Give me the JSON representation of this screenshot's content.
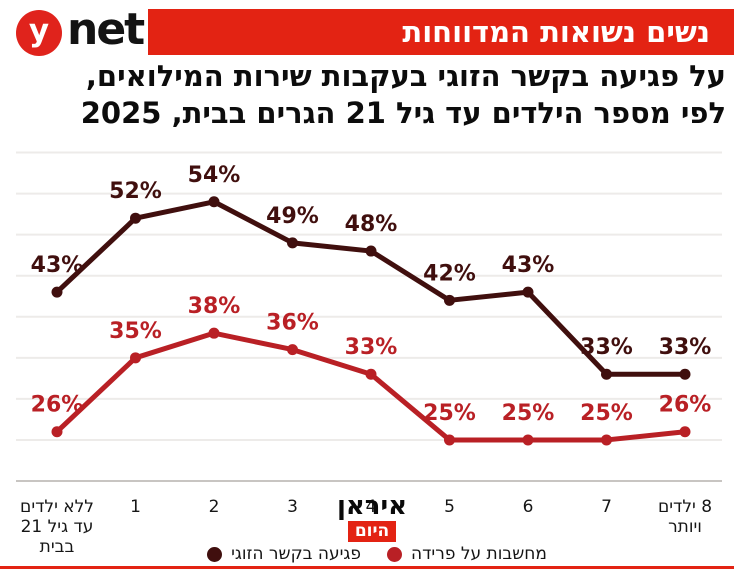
{
  "header": {
    "logo": {
      "circle_letter": "y",
      "wordmark": "net"
    },
    "banner_title": "נשים נשואות המדווחות"
  },
  "subtitle": {
    "line1": "על פגיעה בקשר הזוגי בעקבות שירות המילואים,",
    "line2": "לפי מספר הילדים עד גיל 21 הגרים בבית, 2025"
  },
  "chart_data": {
    "type": "line",
    "unit": "%",
    "categories": [
      "ללא ילדים עד גיל 21 בבית",
      "1",
      "2",
      "3",
      "4",
      "5",
      "6",
      "7",
      "8 ילדים ויותר"
    ],
    "category_lines": [
      [
        "ללא ילדים",
        "עד גיל 21",
        "בבית"
      ],
      [
        "1"
      ],
      [
        "2"
      ],
      [
        "3"
      ],
      [
        "4"
      ],
      [
        "5"
      ],
      [
        "6"
      ],
      [
        "7"
      ],
      [
        "8 ילדים",
        "ויותר"
      ]
    ],
    "series": [
      {
        "name": "פגיעה בקשר הזוגי",
        "color": "#400f0e",
        "values": [
          43,
          52,
          54,
          49,
          48,
          42,
          43,
          33,
          33
        ]
      },
      {
        "name": "מחשבות על פרידה",
        "color": "#b92025",
        "values": [
          26,
          35,
          38,
          36,
          33,
          25,
          25,
          25,
          26
        ]
      }
    ],
    "ylim": [
      20,
      60
    ],
    "grid_step": 5,
    "grid": "on",
    "legend_position": "bottom",
    "xlabel": "",
    "ylabel": ""
  },
  "watermark": {
    "line1": "איראן",
    "line2": "היום"
  },
  "colors": {
    "accent_red": "#e32313",
    "logo_red": "#e0231c",
    "dark_series": "#400f0e",
    "red_series": "#b92025",
    "gridline": "#edebe9",
    "axis_line": "#c8c5c2"
  }
}
